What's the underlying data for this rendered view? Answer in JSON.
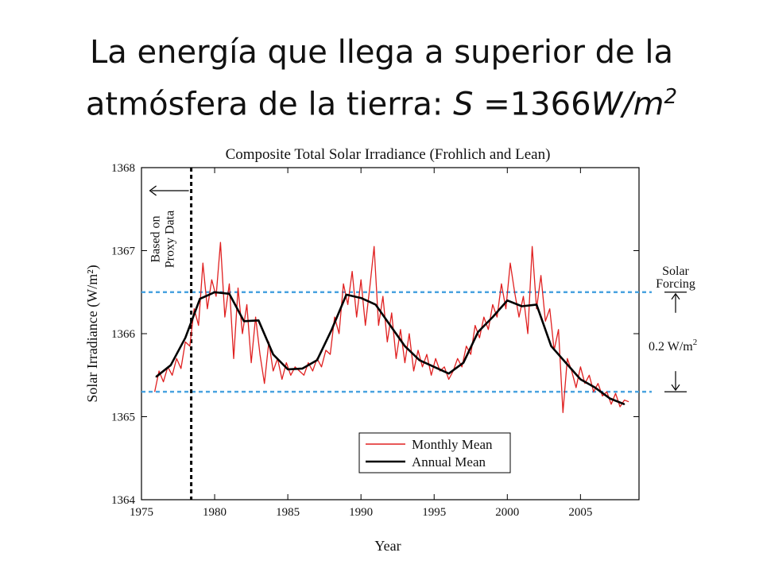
{
  "slide": {
    "title_line1": "La energía que llega a superior de la",
    "title_line2_prefix": "atmósfera de la tierra: ",
    "title_var": "S",
    "title_eq": " =1366",
    "title_unit": "W/m",
    "title_sup": "2"
  },
  "chart_data": {
    "type": "line",
    "title": "Composite Total Solar Irradiance (Frohlich and Lean)",
    "xlabel": "Year",
    "ylabel": "Solar Irradiance (W/m²)",
    "xlim": [
      1975,
      2009
    ],
    "ylim": [
      1364,
      1368
    ],
    "x_ticks": [
      1975,
      1980,
      1985,
      1990,
      1995,
      2000,
      2005
    ],
    "y_ticks": [
      1364,
      1365,
      1366,
      1367,
      1368
    ],
    "proxy_year": 1978.4,
    "proxy_label_line1": "Based on",
    "proxy_label_line2": "Proxy Data",
    "reference_lines": [
      1366.5,
      1365.3
    ],
    "forcing_label_line1": "Solar",
    "forcing_label_line2": "Forcing",
    "forcing_amount": "0.2 W/m",
    "forcing_amount_sup": "2",
    "legend": {
      "placement": "lower-center",
      "items": [
        "Monthly Mean",
        "Annual Mean"
      ]
    },
    "colors": {
      "monthly": "#e02020",
      "annual": "#000000",
      "reference": "#4aa3e0",
      "proxy": "#000000"
    },
    "series": [
      {
        "name": "Annual Mean",
        "x": [
          1976,
          1977,
          1978,
          1979,
          1980,
          1981,
          1982,
          1983,
          1984,
          1985,
          1986,
          1987,
          1988,
          1989,
          1990,
          1991,
          1992,
          1993,
          1994,
          1995,
          1996,
          1997,
          1998,
          1999,
          2000,
          2001,
          2002,
          2003,
          2004,
          2005,
          2006,
          2007,
          2008
        ],
        "y": [
          1365.48,
          1365.62,
          1365.95,
          1366.42,
          1366.5,
          1366.48,
          1366.15,
          1366.16,
          1365.75,
          1365.57,
          1365.58,
          1365.68,
          1366.05,
          1366.47,
          1366.43,
          1366.35,
          1366.1,
          1365.85,
          1365.68,
          1365.6,
          1365.52,
          1365.65,
          1366.02,
          1366.2,
          1366.4,
          1366.33,
          1366.35,
          1365.85,
          1365.65,
          1365.45,
          1365.35,
          1365.22,
          1365.15
        ]
      },
      {
        "name": "Monthly Mean",
        "x": [
          1975.9,
          1976.2,
          1976.5,
          1976.8,
          1977.1,
          1977.4,
          1977.7,
          1978.0,
          1978.3,
          1978.6,
          1978.9,
          1979.2,
          1979.5,
          1979.8,
          1980.1,
          1980.4,
          1980.7,
          1981.0,
          1981.3,
          1981.6,
          1981.9,
          1982.2,
          1982.5,
          1982.8,
          1983.1,
          1983.4,
          1983.7,
          1984.0,
          1984.3,
          1984.6,
          1984.9,
          1985.2,
          1985.5,
          1985.8,
          1986.1,
          1986.4,
          1986.7,
          1987.0,
          1987.3,
          1987.6,
          1987.9,
          1988.2,
          1988.5,
          1988.8,
          1989.1,
          1989.4,
          1989.7,
          1990.0,
          1990.3,
          1990.6,
          1990.9,
          1991.2,
          1991.5,
          1991.8,
          1992.1,
          1992.4,
          1992.7,
          1993.0,
          1993.3,
          1993.6,
          1993.9,
          1994.2,
          1994.5,
          1994.8,
          1995.1,
          1995.4,
          1995.7,
          1996.0,
          1996.3,
          1996.6,
          1996.9,
          1997.2,
          1997.5,
          1997.8,
          1998.1,
          1998.4,
          1998.7,
          1999.0,
          1999.3,
          1999.6,
          1999.9,
          2000.2,
          2000.5,
          2000.8,
          2001.1,
          2001.4,
          2001.7,
          2002.0,
          2002.3,
          2002.6,
          2002.9,
          2003.2,
          2003.5,
          2003.8,
          2004.1,
          2004.4,
          2004.7,
          2005.0,
          2005.3,
          2005.6,
          2005.9,
          2006.2,
          2006.5,
          2006.8,
          2007.1,
          2007.4,
          2007.7,
          2008.0,
          2008.3
        ],
        "y": [
          1365.3,
          1365.55,
          1365.42,
          1365.6,
          1365.5,
          1365.7,
          1365.58,
          1365.9,
          1365.85,
          1366.3,
          1366.1,
          1366.85,
          1366.3,
          1366.65,
          1366.45,
          1367.1,
          1366.2,
          1366.6,
          1365.7,
          1366.55,
          1366.0,
          1366.35,
          1365.65,
          1366.2,
          1365.75,
          1365.4,
          1365.9,
          1365.55,
          1365.7,
          1365.45,
          1365.65,
          1365.5,
          1365.6,
          1365.55,
          1365.5,
          1365.65,
          1365.55,
          1365.7,
          1365.6,
          1365.8,
          1365.75,
          1366.2,
          1366.0,
          1366.6,
          1366.35,
          1366.75,
          1366.2,
          1366.65,
          1366.1,
          1366.55,
          1367.05,
          1366.1,
          1366.45,
          1365.9,
          1366.25,
          1365.7,
          1366.05,
          1365.65,
          1366.0,
          1365.55,
          1365.8,
          1365.6,
          1365.75,
          1365.5,
          1365.7,
          1365.55,
          1365.6,
          1365.45,
          1365.55,
          1365.7,
          1365.6,
          1365.85,
          1365.75,
          1366.1,
          1365.95,
          1366.2,
          1366.05,
          1366.35,
          1366.2,
          1366.6,
          1366.3,
          1366.85,
          1366.5,
          1366.2,
          1366.45,
          1366.0,
          1367.05,
          1366.3,
          1366.7,
          1366.15,
          1366.3,
          1365.8,
          1366.05,
          1365.05,
          1365.7,
          1365.55,
          1365.35,
          1365.6,
          1365.4,
          1365.5,
          1365.3,
          1365.4,
          1365.25,
          1365.3,
          1365.15,
          1365.28,
          1365.12,
          1365.2,
          1365.18
        ]
      }
    ]
  }
}
